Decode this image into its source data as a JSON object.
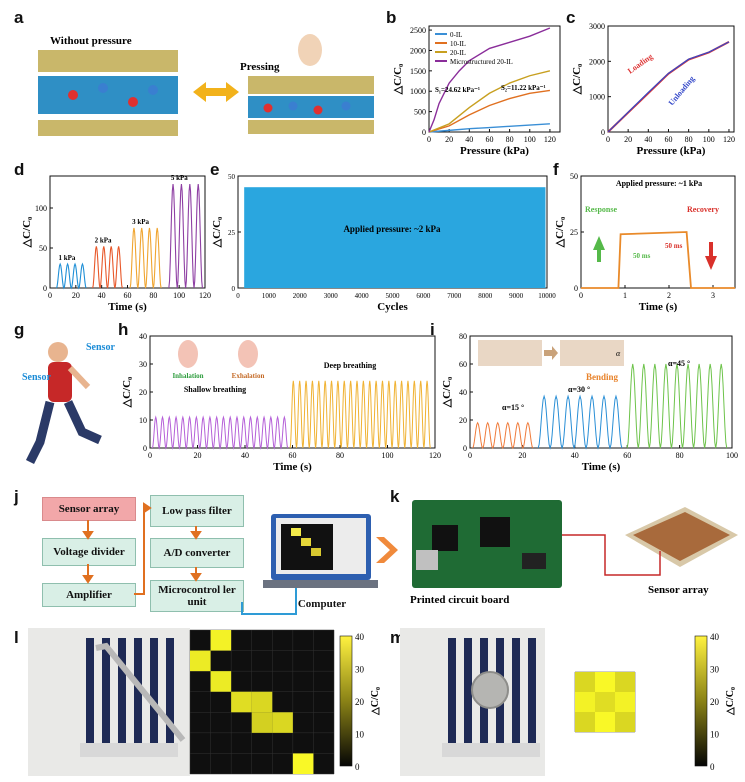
{
  "panels": {
    "a": {
      "label": "a",
      "without": "Without pressure",
      "pressing": "Pressing"
    },
    "b": {
      "label": "b",
      "xlabel": "Pressure (kPa)",
      "ylabel": "△C/C₀",
      "s1": "S₁=24.62 kPa⁻¹",
      "s2": "S₂=11.22 kPa⁻¹",
      "legend": [
        "0-IL",
        "10-IL",
        "20-IL",
        "Microstructured 20-IL"
      ],
      "colors": [
        "#3a8fd6",
        "#e07020",
        "#c8a020",
        "#8a2d9a"
      ]
    },
    "c": {
      "label": "c",
      "xlabel": "Pressure (kPa)",
      "ylabel": "△C/C₀",
      "loading": "Loading",
      "unloading": "Unloading"
    },
    "d": {
      "label": "d",
      "xlabel": "Time (s)",
      "ylabel": "△C/C₀",
      "tags": [
        "1 kPa",
        "2 kPa",
        "3 kPa",
        "5 kPa"
      ]
    },
    "e": {
      "label": "e",
      "xlabel": "Cycles",
      "ylabel": "△C/C₀",
      "note": "Applied pressure: ~2 kPa"
    },
    "f": {
      "label": "f",
      "xlabel": "Time (s)",
      "ylabel": "△C/C₀",
      "note": "Applied pressure: ~1 kPa",
      "response": "Response",
      "recovery": "Recovery",
      "t1": "50 ms",
      "t2": "50 ms"
    },
    "g": {
      "label": "g",
      "sensor1": "Sensor",
      "sensor2": "Sensor"
    },
    "h": {
      "label": "h",
      "xlabel": "Time (s)",
      "ylabel": "△C/C₀",
      "inhal": "Inhalation",
      "exhal": "Exhalation",
      "shallow": "Shallow breathing",
      "deep": "Deep breathing"
    },
    "i": {
      "label": "i",
      "xlabel": "Time (s)",
      "ylabel": "△C/C₀",
      "bending": "Bending",
      "a15": "α=15 °",
      "a30": "α=30 °",
      "a45": "α=45 °",
      "alpha": "α"
    },
    "j": {
      "label": "j",
      "boxes": [
        "Sensor array",
        "Voltage divider",
        "Amplifier",
        "Low pass filter",
        "A/D converter",
        "Microcontrol ler unit"
      ],
      "computer": "Computer"
    },
    "k": {
      "label": "k",
      "pcb": "Printed circuit board",
      "array": "Sensor array"
    },
    "l": {
      "label": "l",
      "cb_label": "△C/C₀",
      "ticks": [
        "40",
        "30",
        "20",
        "10",
        "0"
      ]
    },
    "m": {
      "label": "m",
      "cb_label": "△C/C₀",
      "ticks": [
        "40",
        "30",
        "20",
        "10",
        "0"
      ]
    }
  },
  "chart_data": [
    {
      "panel": "b",
      "type": "line",
      "xlabel": "Pressure (kPa)",
      "ylabel": "△C/C₀",
      "x_ticks": [
        0,
        20,
        40,
        60,
        80,
        100,
        120
      ],
      "y_ticks": [
        0,
        500,
        1000,
        1500,
        2000,
        2500
      ],
      "xlim": [
        0,
        130
      ],
      "ylim": [
        0,
        2600
      ],
      "series": [
        {
          "name": "0-IL",
          "x": [
            0,
            20,
            40,
            60,
            80,
            100,
            120
          ],
          "y": [
            0,
            40,
            80,
            110,
            140,
            170,
            200
          ]
        },
        {
          "name": "10-IL",
          "x": [
            0,
            20,
            40,
            60,
            80,
            100,
            120
          ],
          "y": [
            0,
            150,
            420,
            650,
            820,
            950,
            1020
          ]
        },
        {
          "name": "20-IL",
          "x": [
            0,
            20,
            40,
            60,
            80,
            100,
            120
          ],
          "y": [
            0,
            200,
            600,
            950,
            1200,
            1380,
            1500
          ]
        },
        {
          "name": "Microstructured 20-IL",
          "x": [
            0,
            5,
            10,
            20,
            30,
            40,
            60,
            80,
            100,
            120
          ],
          "y": [
            0,
            300,
            700,
            1200,
            1500,
            1750,
            2050,
            2200,
            2350,
            2550
          ]
        }
      ]
    },
    {
      "panel": "c",
      "type": "line",
      "xlabel": "Pressure (kPa)",
      "ylabel": "△C/C₀",
      "x_ticks": [
        0,
        20,
        40,
        60,
        80,
        100,
        120
      ],
      "y_ticks": [
        0,
        1000,
        2000,
        3000
      ],
      "xlim": [
        0,
        125
      ],
      "ylim": [
        0,
        3000
      ],
      "series": [
        {
          "name": "Loading",
          "x": [
            0,
            20,
            40,
            60,
            80,
            100,
            120
          ],
          "y": [
            0,
            550,
            1100,
            1650,
            2050,
            2250,
            2550
          ]
        },
        {
          "name": "Unloading",
          "x": [
            0,
            20,
            40,
            60,
            80,
            100,
            120
          ],
          "y": [
            0,
            560,
            1120,
            1660,
            2060,
            2260,
            2550
          ]
        }
      ]
    },
    {
      "panel": "d",
      "type": "line",
      "xlabel": "Time (s)",
      "ylabel": "△C/C₀",
      "x_ticks": [
        0,
        20,
        40,
        60,
        80,
        100,
        120
      ],
      "y_ticks": [
        0,
        50,
        100
      ],
      "xlim": [
        0,
        120
      ],
      "ylim": [
        0,
        140
      ],
      "series": [
        {
          "name": "1 kPa",
          "peak": 30
        },
        {
          "name": "2 kPa",
          "peak": 52
        },
        {
          "name": "3 kPa",
          "peak": 75
        },
        {
          "name": "5 kPa",
          "peak": 130
        }
      ]
    },
    {
      "panel": "e",
      "type": "area",
      "xlabel": "Cycles",
      "ylabel": "△C/C₀",
      "x_ticks": [
        0,
        1000,
        2000,
        3000,
        4000,
        5000,
        6000,
        7000,
        8000,
        9000,
        10000
      ],
      "y_ticks": [
        0,
        25,
        50
      ],
      "xlim": [
        0,
        10000
      ],
      "ylim": [
        0,
        50
      ],
      "band": [
        0,
        45
      ]
    },
    {
      "panel": "f",
      "type": "line",
      "xlabel": "Time (s)",
      "ylabel": "△C/C₀",
      "x_ticks": [
        0,
        1,
        2,
        3
      ],
      "y_ticks": [
        0,
        25,
        50
      ],
      "xlim": [
        0,
        3.5
      ],
      "ylim": [
        0,
        50
      ],
      "series": [
        {
          "name": "response",
          "x": [
            0,
            0.85,
            0.9,
            2.4,
            2.5,
            3.5
          ],
          "y": [
            0,
            0,
            24,
            25,
            0,
            0
          ]
        }
      ]
    },
    {
      "panel": "h",
      "type": "line",
      "xlabel": "Time (s)",
      "ylabel": "△C/C₀",
      "x_ticks": [
        0,
        20,
        40,
        60,
        80,
        100,
        120
      ],
      "y_ticks": [
        0,
        10,
        20,
        30,
        40
      ],
      "xlim": [
        0,
        120
      ],
      "ylim": [
        0,
        40
      ],
      "series": [
        {
          "name": "Shallow breathing",
          "peak": 11
        },
        {
          "name": "Deep breathing",
          "peak": 24
        }
      ]
    },
    {
      "panel": "i",
      "type": "line",
      "xlabel": "Time (s)",
      "ylabel": "△C/C₀",
      "x_ticks": [
        0,
        20,
        40,
        60,
        80,
        100
      ],
      "y_ticks": [
        0,
        20,
        40,
        60,
        80
      ],
      "xlim": [
        0,
        100
      ],
      "ylim": [
        0,
        80
      ],
      "series": [
        {
          "name": "α=15 °",
          "peak": 18
        },
        {
          "name": "α=30 °",
          "peak": 37
        },
        {
          "name": "α=45 °",
          "peak": 60
        }
      ]
    },
    {
      "panel": "l",
      "type": "heatmap",
      "rows": 7,
      "cols": 7,
      "cells": [
        [
          1,
          0,
          0.85
        ],
        [
          0,
          1,
          0.9
        ],
        [
          2,
          1,
          0.85
        ],
        [
          3,
          2,
          0.75
        ],
        [
          3,
          3,
          0.7
        ],
        [
          4,
          3,
          0.65
        ],
        [
          4,
          4,
          0.7
        ],
        [
          6,
          5,
          0.95
        ]
      ]
    },
    {
      "panel": "m",
      "type": "heatmap",
      "rows": 3,
      "cols": 3,
      "cells": [
        [
          0,
          0,
          0.7
        ],
        [
          0,
          1,
          0.95
        ],
        [
          0,
          2,
          0.7
        ],
        [
          1,
          0,
          0.9
        ],
        [
          1,
          1,
          0.75
        ],
        [
          1,
          2,
          0.9
        ],
        [
          2,
          0,
          0.7
        ],
        [
          2,
          1,
          0.95
        ],
        [
          2,
          2,
          0.7
        ]
      ]
    }
  ]
}
